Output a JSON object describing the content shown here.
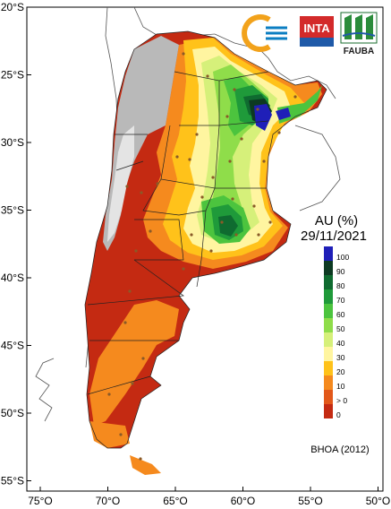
{
  "map": {
    "y_ticks": [
      "20°S",
      "25°S",
      "30°S",
      "35°S",
      "40°S",
      "45°S",
      "50°S",
      "55°S"
    ],
    "x_ticks": [
      "75°O",
      "70°O",
      "65°O",
      "60°O",
      "55°O",
      "50°O"
    ],
    "title": "AU (%)",
    "date": "29/11/2021",
    "credit": "BHOA (2012)",
    "legend": {
      "labels": [
        "100",
        "90",
        "80",
        "70",
        "60",
        "50",
        "40",
        "30",
        "20",
        "10",
        "> 0",
        "0"
      ],
      "colors": [
        "#1f1fb8",
        "#0d3a22",
        "#0f6b30",
        "#1f9a3a",
        "#4cc43e",
        "#8fdd4a",
        "#d6f07a",
        "#fff5a0",
        "#ffc21a",
        "#f58a1e",
        "#e2581a",
        "#c42a12"
      ]
    },
    "logos": {
      "inta": "INTA",
      "fauba": "FAUBA"
    }
  }
}
